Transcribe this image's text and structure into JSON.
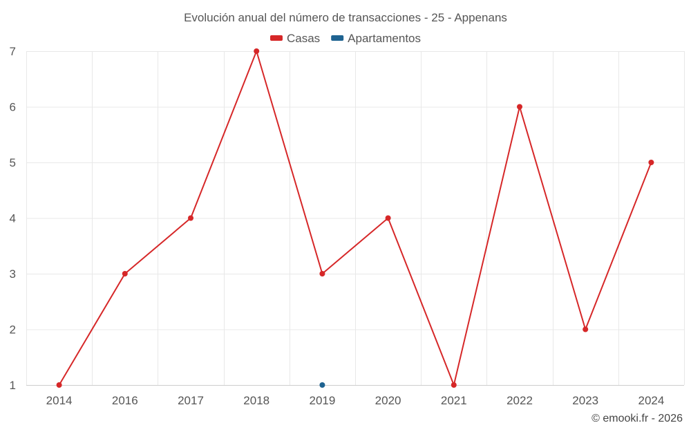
{
  "chart_data": {
    "type": "line",
    "title": "Evolución anual del número de transacciones - 25 - Appenans",
    "categories": [
      "2014",
      "2016",
      "2017",
      "2018",
      "2019",
      "2020",
      "2021",
      "2022",
      "2023",
      "2024"
    ],
    "series": [
      {
        "name": "Casas",
        "color": "#d62728",
        "values": [
          1,
          3,
          4,
          7,
          3,
          4,
          1,
          6,
          2,
          5
        ]
      },
      {
        "name": "Apartamentos",
        "color": "#1f6391",
        "values": [
          null,
          null,
          null,
          null,
          1,
          null,
          null,
          null,
          null,
          null
        ]
      }
    ],
    "y_ticks": [
      "1",
      "2",
      "3",
      "4",
      "5",
      "6",
      "7"
    ],
    "ylim": [
      1,
      7
    ],
    "xlabel": "",
    "ylabel": "",
    "grid": true,
    "legend_position": "top-center"
  },
  "credit": "© emooki.fr - 2026"
}
